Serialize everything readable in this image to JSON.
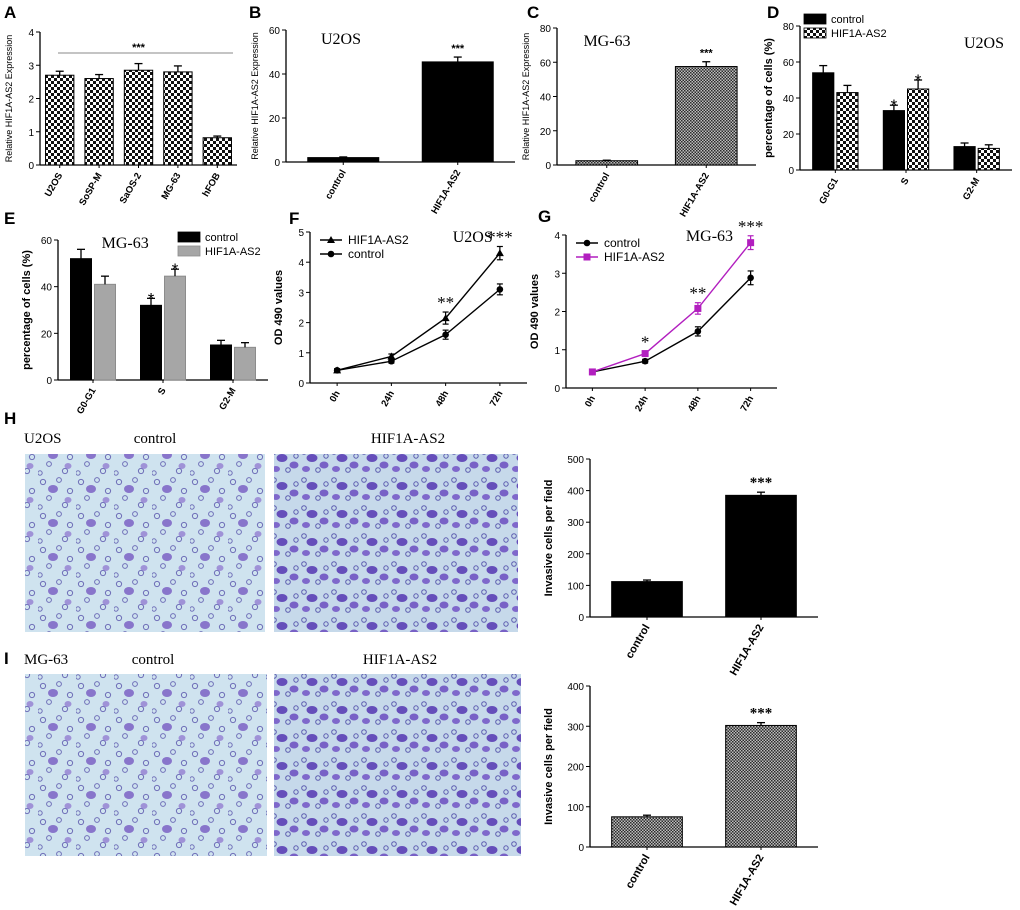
{
  "figure": {
    "panel_letters": [
      "A",
      "B",
      "C",
      "D",
      "E",
      "F",
      "G",
      "H",
      "I"
    ]
  },
  "chart_data": [
    {
      "id": "A",
      "type": "bar",
      "pattern": "check",
      "categories": [
        "U2OS",
        "SoSP-M",
        "SaOS-2",
        "MG-63",
        "hFOB"
      ],
      "values": [
        2.7,
        2.6,
        2.85,
        2.8,
        0.82
      ],
      "errors": [
        0.12,
        0.12,
        0.2,
        0.18,
        0.05
      ],
      "ylabel": "Relative HIF1A-AS2 Expression",
      "ylim": [
        0,
        4
      ],
      "yticks": [
        0,
        1,
        2,
        3,
        4
      ],
      "significance": "***"
    },
    {
      "id": "B",
      "type": "bar",
      "pattern": "solid",
      "inset_title": "U2OS",
      "categories": [
        "control",
        "HIF1A-AS2"
      ],
      "values": [
        2,
        45.5
      ],
      "errors": [
        0.3,
        2.2
      ],
      "ylabel": "Relative HIF1A-AS2 Expression",
      "ylim": [
        0,
        60
      ],
      "yticks": [
        0,
        20,
        40,
        60
      ],
      "bar_labels": [
        "",
        "***"
      ]
    },
    {
      "id": "C",
      "type": "bar",
      "pattern": "fine",
      "inset_title": "MG-63",
      "categories": [
        "control",
        "HIF1A-AS2"
      ],
      "values": [
        2.5,
        57.5
      ],
      "errors": [
        0.3,
        2.8
      ],
      "ylabel": "Relative HIF1A-AS2 Expression",
      "ylim": [
        0,
        80
      ],
      "yticks": [
        0,
        20,
        40,
        60,
        80
      ],
      "bar_labels": [
        "",
        "***"
      ]
    },
    {
      "id": "D",
      "type": "bar",
      "inset_title": "U2OS",
      "categories": [
        "G0-G1",
        "S",
        "G2-M"
      ],
      "series": [
        {
          "name": "control",
          "values": [
            54,
            33,
            13
          ],
          "errors": [
            4,
            3,
            2
          ],
          "pattern": "solid"
        },
        {
          "name": "HIF1A-AS2",
          "values": [
            43,
            45,
            12
          ],
          "errors": [
            4,
            5,
            2
          ],
          "pattern": "check"
        }
      ],
      "ylabel": "percentage of cells (%)",
      "ylim": [
        0,
        80
      ],
      "yticks": [
        0,
        20,
        40,
        60,
        80
      ],
      "bar_labels": [
        [
          "",
          ""
        ],
        [
          "*",
          "*"
        ],
        [
          "",
          ""
        ]
      ],
      "legend": "top-left"
    },
    {
      "id": "E",
      "type": "bar",
      "inset_title": "MG-63",
      "categories": [
        "G0-G1",
        "S",
        "G2-M"
      ],
      "series": [
        {
          "name": "control",
          "values": [
            52,
            32,
            15
          ],
          "errors": [
            4,
            3,
            2
          ],
          "pattern": "solid"
        },
        {
          "name": "HIF1A-AS2",
          "values": [
            41,
            44.5,
            14
          ],
          "errors": [
            3.5,
            3,
            2
          ],
          "pattern": "gray"
        }
      ],
      "ylabel": "percentage of cells (%)",
      "ylim": [
        0,
        60
      ],
      "yticks": [
        0,
        20,
        40,
        60
      ],
      "bar_labels": [
        [
          "",
          ""
        ],
        [
          "*",
          "*"
        ],
        [
          "",
          ""
        ]
      ],
      "legend": "top-right"
    },
    {
      "id": "F",
      "type": "line",
      "inset_title": "U2OS",
      "categories": [
        "0h",
        "24h",
        "48h",
        "72h"
      ],
      "series": [
        {
          "name": "HIF1A-AS2",
          "values": [
            0.42,
            0.88,
            2.15,
            4.3
          ],
          "errors": [
            0.05,
            0.08,
            0.2,
            0.22
          ],
          "marker": "triangle",
          "color": "#000000"
        },
        {
          "name": "control",
          "values": [
            0.42,
            0.72,
            1.6,
            3.1
          ],
          "errors": [
            0.05,
            0.06,
            0.15,
            0.18
          ],
          "marker": "circle",
          "color": "#000000"
        }
      ],
      "ylabel": "OD 490 values",
      "ylim": [
        0,
        5
      ],
      "yticks": [
        0,
        1,
        2,
        3,
        4,
        5
      ],
      "point_labels": [
        "",
        "",
        "**",
        "***"
      ],
      "legend": "top-left"
    },
    {
      "id": "G",
      "type": "line",
      "inset_title": "MG-63",
      "categories": [
        "0h",
        "24h",
        "48h",
        "72h"
      ],
      "series": [
        {
          "name": "control",
          "values": [
            0.42,
            0.7,
            1.48,
            2.88
          ],
          "errors": [
            0.04,
            0.05,
            0.12,
            0.18
          ],
          "marker": "circle",
          "color": "#000000"
        },
        {
          "name": "HIF1A-AS2",
          "values": [
            0.42,
            0.9,
            2.08,
            3.8
          ],
          "errors": [
            0.04,
            0.06,
            0.15,
            0.18
          ],
          "marker": "square",
          "color": "#b21fbf"
        }
      ],
      "ylabel": "OD 490 values",
      "ylim": [
        0,
        4
      ],
      "yticks": [
        0,
        1,
        2,
        3,
        4
      ],
      "point_labels": [
        "",
        "*",
        "**",
        "***"
      ],
      "legend": "top-left"
    },
    {
      "id": "H",
      "type": "bar",
      "pattern": "solid",
      "categories": [
        "control",
        "HIF1A-AS2"
      ],
      "values": [
        112,
        385
      ],
      "errors": [
        5,
        10
      ],
      "ylabel": "Invasive cells per field",
      "ylim": [
        0,
        500
      ],
      "yticks": [
        0,
        100,
        200,
        300,
        400,
        500
      ],
      "bar_labels": [
        "",
        "***"
      ]
    },
    {
      "id": "I",
      "type": "bar",
      "pattern": "fine",
      "categories": [
        "control",
        "HIF1A-AS2"
      ],
      "values": [
        75,
        302
      ],
      "errors": [
        4,
        7
      ],
      "ylabel": "Invasive cells per field",
      "ylim": [
        0,
        400
      ],
      "yticks": [
        0,
        100,
        200,
        300,
        400
      ],
      "bar_labels": [
        "",
        "***"
      ]
    }
  ],
  "micrographs": {
    "H": {
      "row_label": "U2OS",
      "left_label": "control",
      "right_label": "HIF1A-AS2"
    },
    "I": {
      "row_label": "MG-63",
      "left_label": "control",
      "right_label": "HIF1A-AS2"
    }
  }
}
